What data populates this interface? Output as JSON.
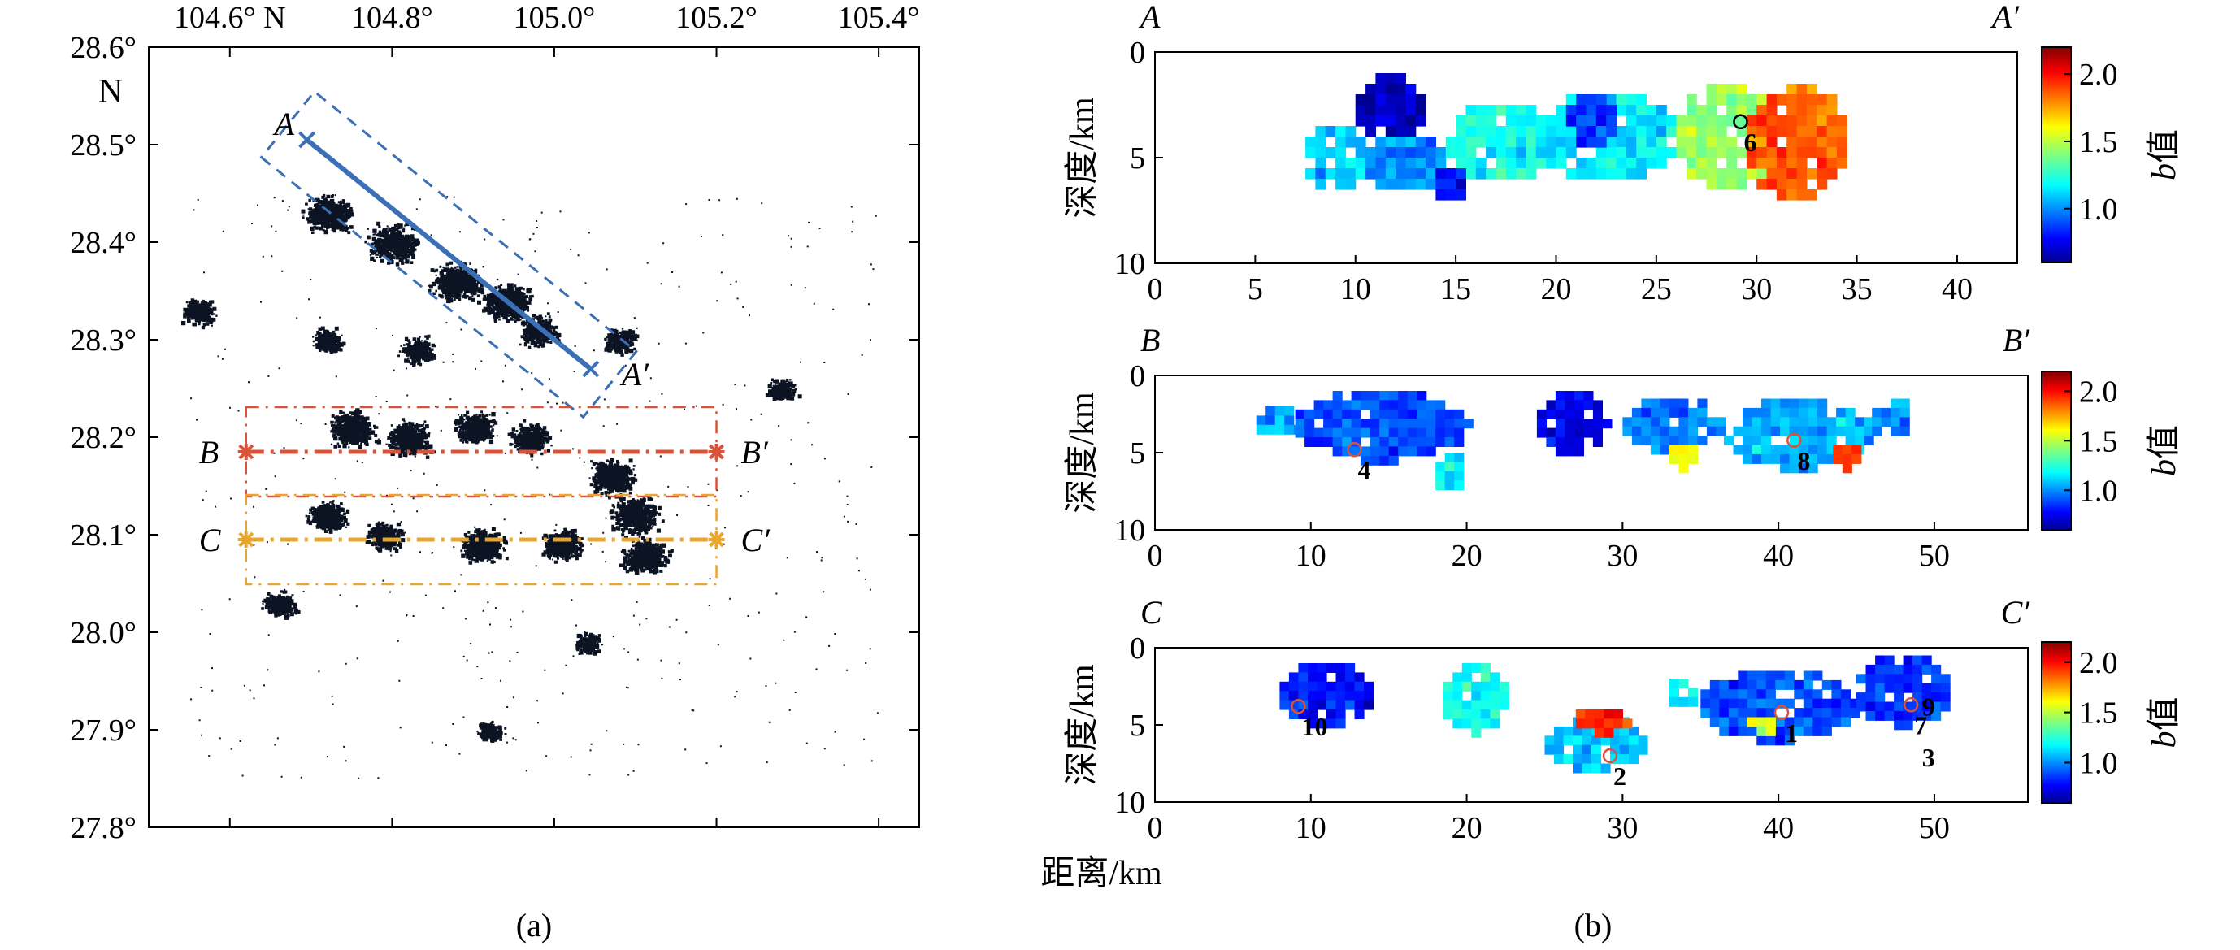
{
  "map": {
    "caption": "(a)",
    "x_ticks": [
      "104.6° N",
      "104.8°",
      "105.0°",
      "105.2°",
      "105.4°"
    ],
    "y_ticks": [
      "28.6°",
      "28.5°",
      "28.4°",
      "28.3°",
      "28.2°",
      "28.1°",
      "28.0°",
      "27.9°",
      "27.8°"
    ],
    "north_label": "N",
    "profiles": [
      {
        "start": "A",
        "end": "A′",
        "color": "#3b6fb6"
      },
      {
        "start": "B",
        "end": "B′",
        "color": "#d9533a"
      },
      {
        "start": "C",
        "end": "C′",
        "color": "#e8a530"
      }
    ]
  },
  "sections": {
    "caption": "(b)",
    "ylabel": "深度/km",
    "xlabel": "距离/km",
    "colorbar_label_italic": "b",
    "colorbar_label_rest": "值",
    "colorbar_ticks": [
      "2.0",
      "1.5",
      "1.0"
    ],
    "panels": [
      {
        "left": "A",
        "right": "A′",
        "x_ticks": [
          "0",
          "5",
          "10",
          "15",
          "20",
          "25",
          "30",
          "35",
          "40"
        ],
        "y_ticks": [
          "0",
          "5",
          "10"
        ],
        "markers": [
          {
            "label": "6",
            "km": 29.2,
            "depth": 3.3,
            "circle": "#000000"
          }
        ]
      },
      {
        "left": "B",
        "right": "B′",
        "x_ticks": [
          "0",
          "10",
          "20",
          "30",
          "40",
          "50"
        ],
        "y_ticks": [
          "0",
          "5",
          "10"
        ],
        "markers": [
          {
            "label": "4",
            "km": 12.8,
            "depth": 4.8,
            "circle": "#d9533a"
          },
          {
            "label": "8",
            "km": 41.0,
            "depth": 4.2,
            "circle": "#d9533a"
          }
        ]
      },
      {
        "left": "C",
        "right": "C′",
        "x_ticks": [
          "0",
          "10",
          "20",
          "30",
          "40",
          "50"
        ],
        "y_ticks": [
          "0",
          "5",
          "10"
        ],
        "markers": [
          {
            "label": "10",
            "km": 9.2,
            "depth": 3.8,
            "circle": "#d9533a"
          },
          {
            "label": "2",
            "km": 29.2,
            "depth": 7.0,
            "circle": "#d9533a"
          },
          {
            "label": "1",
            "km": 40.2,
            "depth": 4.2,
            "circle": "#d9533a"
          },
          {
            "label": "9",
            "km": 49.0,
            "depth": 2.5,
            "circle": "none"
          },
          {
            "label": "7",
            "km": 48.5,
            "depth": 3.7,
            "circle": "#d9533a"
          },
          {
            "label": "3",
            "km": 49.0,
            "depth": 5.8,
            "circle": "none"
          }
        ]
      }
    ]
  },
  "chart_data": [
    {
      "type": "scatter",
      "title": "",
      "xlabel": "",
      "ylabel": "",
      "xlim": [
        104.5,
        105.45
      ],
      "ylim": [
        27.8,
        28.6
      ],
      "series": [
        {
          "name": "A–A′",
          "x": [
            104.695,
            105.045
          ],
          "y": [
            28.505,
            28.27
          ]
        },
        {
          "name": "B–B′",
          "x": [
            104.62,
            105.2
          ],
          "y": [
            28.185,
            28.185
          ]
        },
        {
          "name": "C–C′",
          "x": [
            104.62,
            105.2
          ],
          "y": [
            28.095,
            28.095
          ]
        }
      ],
      "clusters": [
        {
          "lon": 104.72,
          "lat": 28.43,
          "density": 0.9
        },
        {
          "lon": 104.8,
          "lat": 28.4,
          "density": 0.95
        },
        {
          "lon": 104.88,
          "lat": 28.36,
          "density": 1.0
        },
        {
          "lon": 104.94,
          "lat": 28.34,
          "density": 0.95
        },
        {
          "lon": 104.98,
          "lat": 28.31,
          "density": 0.6
        },
        {
          "lon": 104.83,
          "lat": 28.29,
          "density": 0.4
        },
        {
          "lon": 104.72,
          "lat": 28.3,
          "density": 0.3
        },
        {
          "lon": 104.56,
          "lat": 28.33,
          "density": 0.4
        },
        {
          "lon": 105.08,
          "lat": 28.3,
          "density": 0.35
        },
        {
          "lon": 105.28,
          "lat": 28.25,
          "density": 0.25
        },
        {
          "lon": 104.75,
          "lat": 28.21,
          "density": 0.85
        },
        {
          "lon": 104.82,
          "lat": 28.2,
          "density": 0.8
        },
        {
          "lon": 104.9,
          "lat": 28.21,
          "density": 0.65
        },
        {
          "lon": 104.97,
          "lat": 28.2,
          "density": 0.6
        },
        {
          "lon": 105.07,
          "lat": 28.16,
          "density": 0.85
        },
        {
          "lon": 105.1,
          "lat": 28.12,
          "density": 0.9
        },
        {
          "lon": 104.72,
          "lat": 28.12,
          "density": 0.6
        },
        {
          "lon": 104.79,
          "lat": 28.1,
          "density": 0.5
        },
        {
          "lon": 104.91,
          "lat": 28.09,
          "density": 0.8
        },
        {
          "lon": 105.01,
          "lat": 28.09,
          "density": 0.6
        },
        {
          "lon": 105.11,
          "lat": 28.08,
          "density": 0.85
        },
        {
          "lon": 104.66,
          "lat": 28.03,
          "density": 0.35
        },
        {
          "lon": 105.04,
          "lat": 27.99,
          "density": 0.2
        },
        {
          "lon": 104.92,
          "lat": 27.9,
          "density": 0.15
        }
      ]
    },
    {
      "type": "heatmap",
      "title": "A–A′",
      "xlabel": "距离/km",
      "ylabel": "深度/km",
      "xlim": [
        0,
        43
      ],
      "ylim": [
        10,
        0
      ],
      "colorbar_range": [
        0.6,
        2.2
      ],
      "cell_km": 0.5,
      "blobs": [
        {
          "x0": 10.0,
          "x1": 13.5,
          "d0": 1.0,
          "d1": 4.5,
          "b": 0.65
        },
        {
          "x0": 7.5,
          "x1": 10.5,
          "d0": 3.5,
          "d1": 6.5,
          "b": 1.1
        },
        {
          "x0": 10.5,
          "x1": 14.5,
          "d0": 4.0,
          "d1": 6.5,
          "b": 1.0
        },
        {
          "x0": 14.5,
          "x1": 20.0,
          "d0": 2.5,
          "d1": 6.0,
          "b": 1.2
        },
        {
          "x0": 14.0,
          "x1": 15.5,
          "d0": 5.5,
          "d1": 7.0,
          "b": 0.8
        },
        {
          "x0": 19.0,
          "x1": 26.0,
          "d0": 2.0,
          "d1": 6.0,
          "b": 1.15
        },
        {
          "x0": 20.5,
          "x1": 23.0,
          "d0": 2.0,
          "d1": 4.5,
          "b": 0.85
        },
        {
          "x0": 26.0,
          "x1": 31.0,
          "d0": 1.5,
          "d1": 6.5,
          "b": 1.45
        },
        {
          "x0": 29.5,
          "x1": 34.5,
          "d0": 1.5,
          "d1": 7.0,
          "b": 1.85
        }
      ]
    },
    {
      "type": "heatmap",
      "title": "B–B′",
      "xlabel": "距离/km",
      "ylabel": "深度/km",
      "xlim": [
        0,
        56
      ],
      "ylim": [
        10,
        0
      ],
      "colorbar_range": [
        0.6,
        2.2
      ],
      "cell_km": 0.6,
      "blobs": [
        {
          "x0": 6.5,
          "x1": 9.5,
          "d0": 2.0,
          "d1": 4.0,
          "b": 1.05
        },
        {
          "x0": 9.0,
          "x1": 20.0,
          "d0": 1.0,
          "d1": 5.5,
          "b": 0.9
        },
        {
          "x0": 18.0,
          "x1": 20.0,
          "d0": 5.0,
          "d1": 7.5,
          "b": 1.15
        },
        {
          "x0": 24.5,
          "x1": 29.0,
          "d0": 1.0,
          "d1": 5.0,
          "b": 0.75
        },
        {
          "x0": 30.0,
          "x1": 36.5,
          "d0": 1.5,
          "d1": 5.0,
          "b": 0.95
        },
        {
          "x0": 33.0,
          "x1": 35.0,
          "d0": 4.5,
          "d1": 6.0,
          "b": 1.6
        },
        {
          "x0": 36.5,
          "x1": 46.0,
          "d0": 1.5,
          "d1": 6.0,
          "b": 1.05
        },
        {
          "x0": 43.5,
          "x1": 45.5,
          "d0": 4.5,
          "d1": 6.0,
          "b": 1.9
        },
        {
          "x0": 46.0,
          "x1": 48.5,
          "d0": 1.5,
          "d1": 4.0,
          "b": 1.0
        }
      ]
    },
    {
      "type": "heatmap",
      "title": "C–C′",
      "xlabel": "距离/km",
      "ylabel": "深度/km",
      "xlim": [
        0,
        56
      ],
      "ylim": [
        10,
        0
      ],
      "colorbar_range": [
        0.6,
        2.2
      ],
      "cell_km": 0.6,
      "blobs": [
        {
          "x0": 8.0,
          "x1": 14.0,
          "d0": 1.0,
          "d1": 5.0,
          "b": 0.8
        },
        {
          "x0": 18.5,
          "x1": 22.5,
          "d0": 1.0,
          "d1": 5.5,
          "b": 1.2
        },
        {
          "x0": 25.0,
          "x1": 31.5,
          "d0": 4.5,
          "d1": 8.0,
          "b": 1.1
        },
        {
          "x0": 27.0,
          "x1": 30.5,
          "d0": 4.0,
          "d1": 5.5,
          "b": 1.95
        },
        {
          "x0": 33.0,
          "x1": 35.0,
          "d0": 2.0,
          "d1": 4.0,
          "b": 1.15
        },
        {
          "x0": 35.0,
          "x1": 45.0,
          "d0": 1.5,
          "d1": 6.0,
          "b": 0.9
        },
        {
          "x0": 38.0,
          "x1": 40.0,
          "d0": 4.5,
          "d1": 5.5,
          "b": 1.5
        },
        {
          "x0": 45.0,
          "x1": 51.0,
          "d0": 0.5,
          "d1": 5.0,
          "b": 0.85
        }
      ]
    }
  ]
}
